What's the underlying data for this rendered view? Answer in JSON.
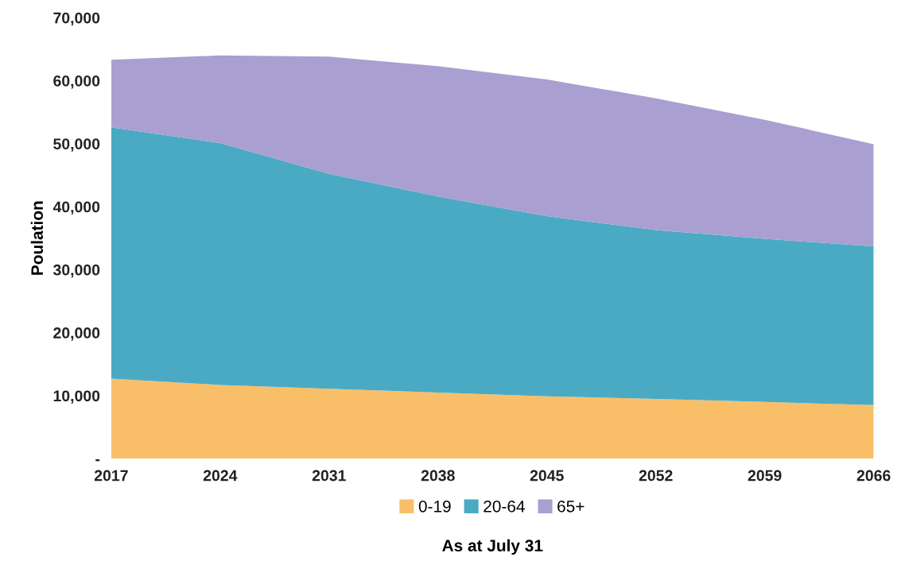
{
  "chart_data": {
    "type": "area",
    "stacked": true,
    "xlabel": "As at July 31",
    "ylabel": "Poulation",
    "x": [
      2017,
      2024,
      2031,
      2038,
      2045,
      2052,
      2059,
      2066
    ],
    "series": [
      {
        "name": "0-19",
        "color": "#f9bf68",
        "values": [
          12700,
          11700,
          11100,
          10500,
          9900,
          9500,
          9000,
          8500
        ]
      },
      {
        "name": "20-64",
        "color": "#4aaac4",
        "values": [
          39900,
          38400,
          34100,
          31100,
          28600,
          26800,
          25900,
          25200
        ]
      },
      {
        "name": "65+",
        "color": "#a99fd0",
        "values": [
          10700,
          13900,
          18600,
          20700,
          21700,
          20900,
          18900,
          16200
        ]
      }
    ],
    "xlim": [
      2017,
      2066
    ],
    "xticks": [
      2017,
      2024,
      2031,
      2038,
      2045,
      2052,
      2059,
      2066
    ],
    "ylim": [
      0,
      70000
    ],
    "yticks": [
      {
        "value": 0,
        "label": "-"
      },
      {
        "value": 10000,
        "label": "10,000"
      },
      {
        "value": 20000,
        "label": "20,000"
      },
      {
        "value": 30000,
        "label": "30,000"
      },
      {
        "value": 40000,
        "label": "40,000"
      },
      {
        "value": 50000,
        "label": "50,000"
      },
      {
        "value": 60000,
        "label": "60,000"
      },
      {
        "value": 70000,
        "label": "70,000"
      }
    ],
    "grid": false,
    "legend": "bottom"
  }
}
